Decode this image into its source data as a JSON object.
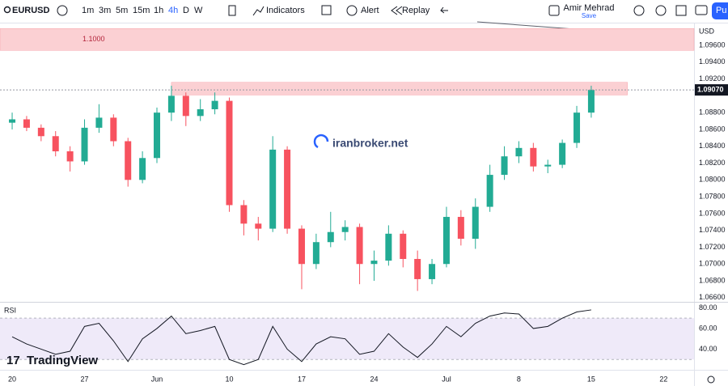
{
  "toolbar": {
    "symbol": "EURUSD",
    "intervals": [
      "1m",
      "3m",
      "5m",
      "15m",
      "1h",
      "4h",
      "D",
      "W"
    ],
    "indicators": "Indicators",
    "alert": "Alert",
    "replay": "Replay",
    "user": "Amir Mehrad",
    "save": "Save",
    "publish": "Pu"
  },
  "watermark": "iranbroker.net",
  "logo": "TradingView",
  "chart_data": {
    "type": "candlestick",
    "currency": "USD",
    "x": [
      0,
      1,
      2,
      3,
      4,
      5,
      6,
      7,
      8,
      9,
      10,
      11,
      12,
      13,
      14,
      15,
      16,
      17,
      18,
      19,
      20,
      21,
      22,
      23,
      24,
      25,
      26,
      27,
      28,
      29,
      30,
      31,
      32,
      33,
      34,
      35,
      36,
      37,
      38,
      39,
      40
    ],
    "open": [
      1.0868,
      1.0872,
      1.0862,
      1.0852,
      1.0834,
      1.0822,
      1.0862,
      1.0874,
      1.0846,
      1.08,
      1.0826,
      1.088,
      1.09,
      1.0876,
      1.0884,
      1.0894,
      1.077,
      1.0748,
      1.0742,
      1.0836,
      1.0742,
      1.07,
      1.0726,
      1.0738,
      1.0744,
      1.07,
      1.0704,
      1.0736,
      1.0706,
      1.0682,
      1.07,
      1.0756,
      1.073,
      1.0768,
      1.0806,
      1.0828,
      1.0838,
      1.0816,
      1.0818,
      1.0844,
      1.088
    ],
    "high": [
      1.088,
      1.0876,
      1.0866,
      1.0858,
      1.084,
      1.0872,
      1.089,
      1.0878,
      1.085,
      1.0834,
      1.0886,
      1.0912,
      1.0904,
      1.0896,
      1.0904,
      1.0898,
      1.0776,
      1.0756,
      1.0852,
      1.084,
      1.0746,
      1.0736,
      1.0762,
      1.0752,
      1.0748,
      1.0716,
      1.0746,
      1.074,
      1.0716,
      1.0706,
      1.0768,
      1.0764,
      1.0778,
      1.0818,
      1.084,
      1.0846,
      1.0844,
      1.0824,
      1.0848,
      1.0888,
      1.0912
    ],
    "low": [
      1.086,
      1.0858,
      1.0846,
      1.0828,
      1.081,
      1.0818,
      1.0856,
      1.084,
      1.0792,
      1.0796,
      1.082,
      1.087,
      1.0864,
      1.087,
      1.0878,
      1.0762,
      1.0734,
      1.0728,
      1.0738,
      1.0736,
      1.067,
      1.0694,
      1.072,
      1.0728,
      1.0676,
      1.068,
      1.0698,
      1.0696,
      1.0668,
      1.0676,
      1.0696,
      1.0722,
      1.0718,
      1.0762,
      1.08,
      1.082,
      1.081,
      1.0808,
      1.0814,
      1.0838,
      1.0874
    ],
    "close": [
      1.0872,
      1.0862,
      1.0852,
      1.0834,
      1.0822,
      1.0862,
      1.0874,
      1.0846,
      1.08,
      1.0826,
      1.088,
      1.09,
      1.0876,
      1.0884,
      1.0894,
      1.077,
      1.0748,
      1.0742,
      1.0836,
      1.0742,
      1.07,
      1.0726,
      1.0738,
      1.0744,
      1.07,
      1.0704,
      1.0736,
      1.0706,
      1.0682,
      1.07,
      1.0756,
      1.073,
      1.0768,
      1.0806,
      1.0828,
      1.0838,
      1.0816,
      1.0818,
      1.0844,
      1.088,
      1.0907
    ],
    "up_color": "#22ab94",
    "down_color": "#f7525f",
    "xlim": [
      -0.84,
      47.1
    ],
    "xticks": [
      {
        "value": 0,
        "label": "20"
      },
      {
        "value": 5,
        "label": "27"
      },
      {
        "value": 10,
        "label": "Jun"
      },
      {
        "value": 15,
        "label": "10"
      },
      {
        "value": 20,
        "label": "17"
      },
      {
        "value": 25,
        "label": "24"
      },
      {
        "value": 30,
        "label": "Jul"
      },
      {
        "value": 35,
        "label": "8"
      },
      {
        "value": 40,
        "label": "15"
      },
      {
        "value": 45,
        "label": "22"
      }
    ],
    "ylim": [
      1.0655,
      1.0986
    ],
    "yticks": [
      {
        "value": 1.096,
        "label": "1.09600"
      },
      {
        "value": 1.094,
        "label": "1.09400"
      },
      {
        "value": 1.092,
        "label": "1.09200"
      },
      {
        "value": 1.088,
        "label": "1.08800"
      },
      {
        "value": 1.086,
        "label": "1.08600"
      },
      {
        "value": 1.084,
        "label": "1.08400"
      },
      {
        "value": 1.082,
        "label": "1.08200"
      },
      {
        "value": 1.08,
        "label": "1.08000"
      },
      {
        "value": 1.078,
        "label": "1.07800"
      },
      {
        "value": 1.076,
        "label": "1.07600"
      },
      {
        "value": 1.074,
        "label": "1.07400"
      },
      {
        "value": 1.072,
        "label": "1.07200"
      },
      {
        "value": 1.07,
        "label": "1.07000"
      },
      {
        "value": 1.068,
        "label": "1.06800"
      },
      {
        "value": 1.066,
        "label": "1.06600"
      }
    ],
    "last_price": {
      "value": 1.0907,
      "label": "1.09070"
    },
    "zones": [
      {
        "label": "1.1000",
        "range": [
          1.0954,
          1.098
        ],
        "xrange": [
          -0.84,
          47.1
        ]
      },
      {
        "range": [
          1.0901,
          1.0916
        ],
        "xrange": [
          11,
          42.5
        ]
      }
    ],
    "zone_color": "#fbd0d3",
    "rsi": {
      "name": "RSI",
      "color": "#131722",
      "band_color": "#efeaf9",
      "values": [
        52,
        45,
        40,
        35,
        38,
        62,
        65,
        48,
        28,
        50,
        60,
        72,
        55,
        58,
        62,
        30,
        25,
        30,
        62,
        40,
        28,
        45,
        52,
        50,
        35,
        38,
        55,
        42,
        32,
        45,
        62,
        52,
        65,
        72,
        75,
        74,
        60,
        62,
        70,
        76,
        78
      ],
      "ylim": [
        20,
        85
      ],
      "band": [
        30,
        70
      ],
      "yticks": [
        {
          "value": 80,
          "label": "80.00"
        },
        {
          "value": 60,
          "label": "60.00"
        },
        {
          "value": 40,
          "label": "40.00"
        }
      ]
    }
  }
}
